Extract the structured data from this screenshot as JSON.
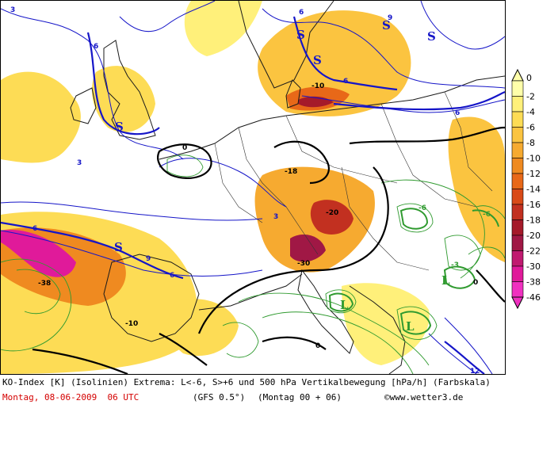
{
  "map": {
    "legend": {
      "labels": [
        "0",
        "-2",
        "-4",
        "-6",
        "-8",
        "-10",
        "-12",
        "-14",
        "-16",
        "-18",
        "-20",
        "-22",
        "-30",
        "-38",
        "-46"
      ],
      "colors": [
        "#ffffaa",
        "#fff07a",
        "#fddc55",
        "#fbc440",
        "#f6aa30",
        "#ef8a20",
        "#e86818",
        "#d94a18",
        "#c23020",
        "#a51a2a",
        "#a01845",
        "#c01a70",
        "#e01a9a",
        "#f030c0"
      ]
    },
    "center_labels": [
      "S",
      "S",
      "S",
      "S",
      "S",
      "S",
      "L",
      "L",
      "L"
    ],
    "contour_values": [
      "6",
      "9",
      "-6",
      "-3",
      "3",
      "0",
      "-10",
      "-18",
      "-38",
      "-30",
      "-20",
      "12"
    ],
    "colors": {
      "ko_isolines": "#1515c8",
      "vertical_motion_isolines": "#2f9a2f",
      "zero_isoline": "#000000",
      "coastlines": "#1a1a1a"
    }
  },
  "footer": {
    "line1": "KO-Index [K] (Isolinien) Extrema: L<-6, S>+6 und 500 hPa Vertikalbewegung [hPa/h] (Farbskala)",
    "date": "Montag, 08-06-2009  06 UTC",
    "model": "(GFS 0.5°)",
    "run": "(Montag 00 + 06)",
    "copyright": "©www.wetter3.de"
  }
}
